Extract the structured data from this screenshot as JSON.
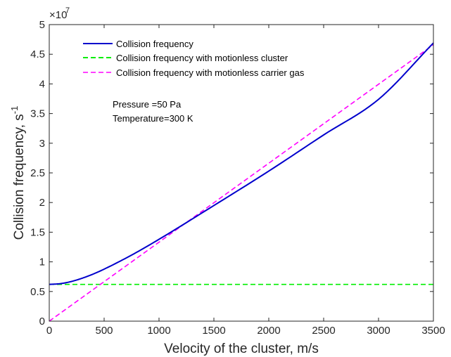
{
  "chart_data": {
    "type": "line",
    "xlabel": "Velocity of the cluster, m/s",
    "ylabel_main": "Collision frequency, s",
    "ylabel_superscript": "-1",
    "y_multiplier": "×10",
    "y_multiplier_exponent": "7",
    "xlim": [
      0,
      3500
    ],
    "ylim": [
      0,
      5
    ],
    "x_ticks": [
      0,
      500,
      1000,
      1500,
      2000,
      2500,
      3000,
      3500
    ],
    "y_ticks": [
      0,
      0.5,
      1,
      1.5,
      2,
      2.5,
      3,
      3.5,
      4,
      4.5,
      5
    ],
    "y_tick_labels": [
      "0",
      "0.5",
      "1",
      "1.5",
      "2",
      "2.5",
      "3",
      "3.5",
      "4",
      "4.5",
      "5"
    ],
    "grid": false,
    "legend_position": "top-left",
    "annotations": [
      "Pressure =50 Pa",
      "Temperature=300 K"
    ],
    "series": [
      {
        "name": "Collision frequency",
        "color": "#0000cc",
        "style": "solid",
        "x": [
          0,
          100,
          200,
          300,
          400,
          500,
          750,
          1000,
          1500,
          2000,
          2500,
          3000,
          3500
        ],
        "y": [
          0.62,
          0.632,
          0.668,
          0.724,
          0.794,
          0.877,
          1.114,
          1.38,
          1.95,
          2.53,
          3.14,
          3.74,
          4.69
        ]
      },
      {
        "name": "Collision frequency with motionless cluster",
        "color": "#00ee00",
        "style": "dashed",
        "x": [
          0,
          3500
        ],
        "y": [
          0.62,
          0.62
        ]
      },
      {
        "name": "Collision frequency with motionless carrier gas",
        "color": "#ff00ff",
        "style": "dashed",
        "x": [
          0,
          3500
        ],
        "y": [
          0,
          4.66
        ]
      }
    ]
  }
}
